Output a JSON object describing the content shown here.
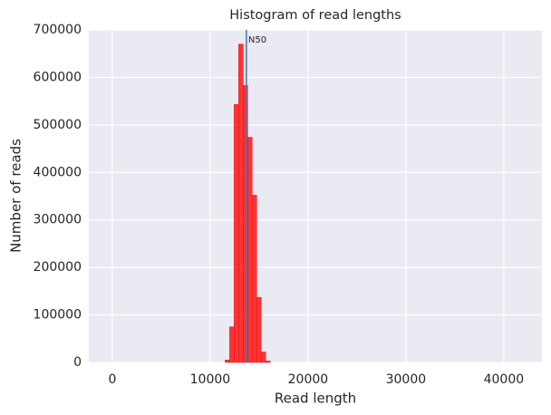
{
  "chart_data": {
    "type": "histogram",
    "title": "Histogram of read lengths",
    "x_label": "Read length",
    "y_label": "Number of reads",
    "bins": [
      11530,
      11990,
      12450,
      12910,
      13370,
      13830,
      14290,
      14750,
      15210,
      15670,
      16130
    ],
    "counts": [
      5000,
      75000,
      543000,
      670000,
      583000,
      474000,
      352000,
      137000,
      22000,
      3000
    ],
    "color": "#ff2020",
    "vline": {
      "value": 13700,
      "label": "N50",
      "color": "#4c72b0"
    },
    "xlim": [
      -2400,
      43900
    ],
    "xticks": [
      0,
      10000,
      20000,
      30000,
      40000
    ],
    "ylim": [
      0,
      700000
    ],
    "yticks": [
      0,
      100000,
      200000,
      300000,
      400000,
      500000,
      600000,
      700000
    ],
    "grid": true
  }
}
